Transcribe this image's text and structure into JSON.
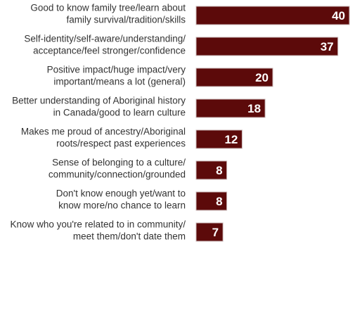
{
  "chart_data": {
    "type": "bar",
    "orientation": "horizontal",
    "categories": [
      [
        "Good to know family tree/learn about",
        "family survival/tradition/skills"
      ],
      [
        "Self-identity/self-aware/understanding/",
        "acceptance/feel stronger/confidence"
      ],
      [
        "Positive impact/huge impact/very",
        "important/means a lot (general)"
      ],
      [
        "Better understanding of Aboriginal history",
        "in Canada/good to learn culture"
      ],
      [
        "Makes me proud of ancestry/Aboriginal",
        "roots/respect past experiences"
      ],
      [
        "Sense of belonging to a culture/",
        "community/connection/grounded"
      ],
      [
        "Don't know enough yet/want to",
        "know more/no chance to learn"
      ],
      [
        "Know who you're related to in community/",
        "meet them/don't date them"
      ]
    ],
    "values": [
      40,
      37,
      20,
      18,
      12,
      8,
      8,
      7
    ],
    "data_labels": [
      "40",
      "37",
      "20",
      "18",
      "12",
      "8",
      "8",
      "7"
    ],
    "xlim": [
      0,
      40
    ],
    "bar_color": "#5c0a0a",
    "bar_edge_color": "#c9b7b7",
    "label_color": "#ffffff",
    "grid": false,
    "legend": "none"
  }
}
